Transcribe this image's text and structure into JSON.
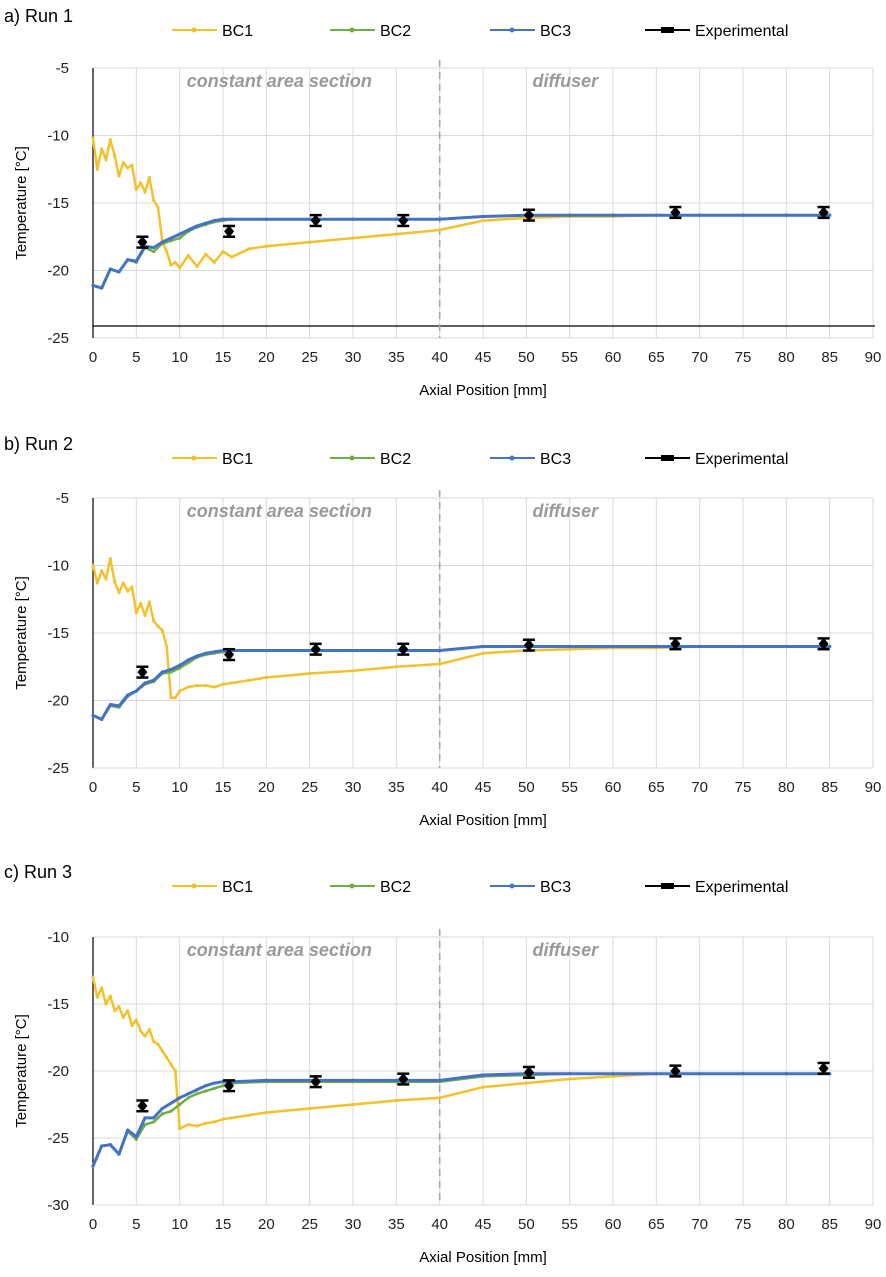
{
  "colors": {
    "bc1": "#f2c12e",
    "bc2": "#70ad47",
    "bc3": "#4472c4",
    "experimental": "#000000",
    "grid": "#d9d9d9",
    "divider": "#a6a6a6"
  },
  "legend": [
    "BC1",
    "BC2",
    "BC3",
    "Experimental"
  ],
  "chart_data": [
    {
      "type": "line",
      "panel_label": "a) Run 1",
      "xlabel": "Axial Position [mm]",
      "ylabel": "Temperature [°C]",
      "xlim": [
        0,
        90
      ],
      "ylim": [
        -25,
        -5
      ],
      "x_ticks": [
        "0",
        "5",
        "10",
        "15",
        "20",
        "25",
        "30",
        "35",
        "40",
        "45",
        "50",
        "55",
        "60",
        "65",
        "70",
        "75",
        "80",
        "85",
        "90"
      ],
      "y_ticks": [
        "-5",
        "-10",
        "-15",
        "-20",
        "-25"
      ],
      "divider_x": 40,
      "region_labels": [
        "constant area section",
        "diffuser"
      ],
      "series": [
        {
          "name": "BC1",
          "x": [
            0,
            0.5,
            1,
            1.5,
            2,
            2.5,
            3,
            3.5,
            4,
            4.5,
            5,
            5.5,
            6,
            6.5,
            7,
            7.5,
            8,
            8.5,
            9,
            9.5,
            10,
            11,
            12,
            13,
            14,
            15,
            16,
            18,
            20,
            25,
            30,
            35,
            40,
            45,
            50,
            55,
            60,
            65,
            70,
            75,
            80,
            85
          ],
          "y": [
            -10.2,
            -12.5,
            -11,
            -11.8,
            -10.3,
            -11.5,
            -13,
            -12,
            -12.4,
            -12.2,
            -14,
            -13.5,
            -14.2,
            -13.1,
            -14.8,
            -15.3,
            -17.8,
            -18.6,
            -19.6,
            -19.4,
            -19.8,
            -18.9,
            -19.7,
            -18.8,
            -19.4,
            -18.6,
            -19,
            -18.4,
            -18.2,
            -17.9,
            -17.6,
            -17.3,
            -17,
            -16.3,
            -16.1,
            -16,
            -16,
            -15.9,
            -15.9,
            -15.9,
            -15.9,
            -15.9
          ]
        },
        {
          "name": "BC2",
          "x": [
            0,
            1,
            2,
            3,
            4,
            5,
            6,
            7,
            8,
            9,
            10,
            11,
            12,
            13,
            14,
            15,
            16,
            20,
            25,
            30,
            35,
            40,
            45,
            50,
            55,
            60,
            65,
            70,
            75,
            80,
            85
          ],
          "y": [
            -21.1,
            -21.3,
            -19.9,
            -20.1,
            -19.2,
            -19.4,
            -18.3,
            -18.6,
            -18,
            -17.8,
            -17.6,
            -17.1,
            -16.8,
            -16.6,
            -16.4,
            -16.3,
            -16.2,
            -16.2,
            -16.2,
            -16.2,
            -16.2,
            -16.2,
            -16,
            -15.9,
            -15.9,
            -15.9,
            -15.9,
            -15.9,
            -15.9,
            -15.9,
            -15.9
          ]
        },
        {
          "name": "BC3",
          "x": [
            0,
            1,
            2,
            3,
            4,
            5,
            6,
            7,
            8,
            9,
            10,
            11,
            12,
            13,
            14,
            15,
            16,
            20,
            25,
            30,
            35,
            40,
            45,
            50,
            55,
            60,
            65,
            70,
            75,
            80,
            85
          ],
          "y": [
            -21.1,
            -21.3,
            -19.9,
            -20.1,
            -19.2,
            -19.3,
            -18.2,
            -18.3,
            -17.9,
            -17.6,
            -17.3,
            -17,
            -16.7,
            -16.5,
            -16.3,
            -16.2,
            -16.2,
            -16.2,
            -16.2,
            -16.2,
            -16.2,
            -16.2,
            -16,
            -15.9,
            -15.9,
            -15.9,
            -15.9,
            -15.9,
            -15.9,
            -15.9,
            -15.9
          ]
        },
        {
          "name": "Experimental",
          "x": [
            5.7,
            15.7,
            25.7,
            35.8,
            50.3,
            67.2,
            84.3
          ],
          "y": [
            -17.9,
            -17.1,
            -16.3,
            -16.3,
            -15.9,
            -15.7,
            -15.7
          ],
          "err": [
            0.4,
            0.4,
            0.4,
            0.4,
            0.4,
            0.4,
            0.4
          ]
        }
      ]
    },
    {
      "type": "line",
      "panel_label": "b) Run 2",
      "xlabel": "Axial Position [mm]",
      "ylabel": "Temperature [°C]",
      "xlim": [
        0,
        90
      ],
      "ylim": [
        -25,
        -5
      ],
      "x_ticks": [
        "0",
        "5",
        "10",
        "15",
        "20",
        "25",
        "30",
        "35",
        "40",
        "45",
        "50",
        "55",
        "60",
        "65",
        "70",
        "75",
        "80",
        "85",
        "90"
      ],
      "y_ticks": [
        "-5",
        "-10",
        "-15",
        "-20",
        "-25"
      ],
      "divider_x": 40,
      "region_labels": [
        "constant area section",
        "diffuser"
      ],
      "series": [
        {
          "name": "BC1",
          "x": [
            0,
            0.5,
            1,
            1.5,
            2,
            2.5,
            3,
            3.5,
            4,
            4.5,
            5,
            5.5,
            6,
            6.5,
            7,
            7.5,
            8,
            8.5,
            9,
            9.5,
            10,
            11,
            12,
            13,
            14,
            15,
            16,
            18,
            20,
            25,
            30,
            35,
            40,
            45,
            50,
            55,
            60,
            65,
            70,
            75,
            80,
            85
          ],
          "y": [
            -10,
            -11.3,
            -10.4,
            -11,
            -9.5,
            -11.2,
            -12,
            -11.3,
            -11.9,
            -11.6,
            -13.5,
            -12.8,
            -13.7,
            -12.7,
            -14.1,
            -14.5,
            -14.8,
            -16,
            -19.8,
            -19.8,
            -19.3,
            -19,
            -18.9,
            -18.9,
            -19,
            -18.8,
            -18.7,
            -18.5,
            -18.3,
            -18,
            -17.8,
            -17.5,
            -17.3,
            -16.5,
            -16.3,
            -16.2,
            -16.1,
            -16.1,
            -16,
            -16,
            -16,
            -16
          ]
        },
        {
          "name": "BC2",
          "x": [
            0,
            1,
            2,
            3,
            4,
            5,
            6,
            7,
            8,
            9,
            10,
            11,
            12,
            13,
            14,
            15,
            16,
            20,
            25,
            30,
            35,
            40,
            45,
            50,
            55,
            60,
            65,
            70,
            75,
            80,
            85
          ],
          "y": [
            -21.1,
            -21.4,
            -20.4,
            -20.5,
            -19.7,
            -19.3,
            -18.8,
            -18.6,
            -18,
            -17.9,
            -17.6,
            -17.2,
            -16.8,
            -16.6,
            -16.5,
            -16.4,
            -16.3,
            -16.3,
            -16.3,
            -16.3,
            -16.3,
            -16.3,
            -16,
            -16,
            -16,
            -16,
            -16,
            -16,
            -16,
            -16,
            -16
          ]
        },
        {
          "name": "BC3",
          "x": [
            0,
            1,
            2,
            3,
            4,
            5,
            6,
            7,
            8,
            9,
            10,
            11,
            12,
            13,
            14,
            15,
            16,
            20,
            25,
            30,
            35,
            40,
            45,
            50,
            55,
            60,
            65,
            70,
            75,
            80,
            85
          ],
          "y": [
            -21.1,
            -21.4,
            -20.3,
            -20.4,
            -19.6,
            -19.3,
            -18.7,
            -18.5,
            -17.9,
            -17.7,
            -17.4,
            -17,
            -16.7,
            -16.5,
            -16.4,
            -16.3,
            -16.3,
            -16.3,
            -16.3,
            -16.3,
            -16.3,
            -16.3,
            -16,
            -16,
            -16,
            -16,
            -16,
            -16,
            -16,
            -16,
            -16
          ]
        },
        {
          "name": "Experimental",
          "x": [
            5.7,
            15.7,
            25.7,
            35.8,
            50.3,
            67.2,
            84.3
          ],
          "y": [
            -17.9,
            -16.6,
            -16.2,
            -16.2,
            -15.9,
            -15.8,
            -15.8
          ],
          "err": [
            0.4,
            0.4,
            0.4,
            0.4,
            0.4,
            0.4,
            0.4
          ]
        }
      ]
    },
    {
      "type": "line",
      "panel_label": "c) Run 3",
      "xlabel": "Axial Position [mm]",
      "ylabel": "Temperature [°C]",
      "xlim": [
        0,
        90
      ],
      "ylim": [
        -30,
        -10
      ],
      "x_ticks": [
        "0",
        "5",
        "10",
        "15",
        "20",
        "25",
        "30",
        "35",
        "40",
        "45",
        "50",
        "55",
        "60",
        "65",
        "70",
        "75",
        "80",
        "85",
        "90"
      ],
      "y_ticks": [
        "-10",
        "-15",
        "-20",
        "-25",
        "-30"
      ],
      "divider_x": 40,
      "region_labels": [
        "constant area section",
        "diffuser"
      ],
      "series": [
        {
          "name": "BC1",
          "x": [
            0,
            0.5,
            1,
            1.5,
            2,
            2.5,
            3,
            3.5,
            4,
            4.5,
            5,
            5.5,
            6,
            6.5,
            7,
            7.5,
            8,
            8.5,
            9,
            9.5,
            10,
            11,
            12,
            13,
            14,
            15,
            16,
            18,
            20,
            25,
            30,
            35,
            40,
            45,
            50,
            55,
            60,
            65,
            70,
            75,
            80,
            85
          ],
          "y": [
            -13,
            -14.5,
            -13.8,
            -15,
            -14.4,
            -15.5,
            -15.2,
            -16,
            -15.5,
            -16.6,
            -16.2,
            -17,
            -17.4,
            -16.9,
            -17.8,
            -18,
            -18.5,
            -19,
            -19.5,
            -20,
            -24.3,
            -24,
            -24.1,
            -23.9,
            -23.8,
            -23.6,
            -23.5,
            -23.3,
            -23.1,
            -22.8,
            -22.5,
            -22.2,
            -22,
            -21.2,
            -20.9,
            -20.6,
            -20.4,
            -20.2,
            -20.2,
            -20.2,
            -20.2,
            -20.2
          ]
        },
        {
          "name": "BC2",
          "x": [
            0,
            1,
            2,
            3,
            4,
            5,
            6,
            7,
            8,
            9,
            10,
            11,
            12,
            13,
            14,
            15,
            16,
            20,
            25,
            30,
            35,
            40,
            45,
            50,
            55,
            60,
            65,
            70,
            75,
            80,
            85
          ],
          "y": [
            -27.1,
            -25.6,
            -25.5,
            -26.2,
            -24.5,
            -25.1,
            -24,
            -23.8,
            -23.2,
            -23,
            -22.5,
            -22,
            -21.7,
            -21.5,
            -21.3,
            -21.1,
            -20.9,
            -20.8,
            -20.8,
            -20.8,
            -20.8,
            -20.8,
            -20.4,
            -20.3,
            -20.2,
            -20.2,
            -20.2,
            -20.2,
            -20.2,
            -20.2,
            -20.2
          ]
        },
        {
          "name": "BC3",
          "x": [
            0,
            1,
            2,
            3,
            4,
            5,
            6,
            7,
            8,
            9,
            10,
            11,
            12,
            13,
            14,
            15,
            16,
            20,
            25,
            30,
            35,
            40,
            45,
            50,
            55,
            60,
            65,
            70,
            75,
            80,
            85
          ],
          "y": [
            -27.1,
            -25.6,
            -25.5,
            -26.2,
            -24.4,
            -24.9,
            -23.5,
            -23.5,
            -22.8,
            -22.4,
            -22,
            -21.7,
            -21.4,
            -21.1,
            -20.9,
            -20.8,
            -20.8,
            -20.7,
            -20.7,
            -20.7,
            -20.7,
            -20.7,
            -20.3,
            -20.2,
            -20.2,
            -20.2,
            -20.2,
            -20.2,
            -20.2,
            -20.2,
            -20.2
          ]
        },
        {
          "name": "Experimental",
          "x": [
            5.7,
            15.7,
            25.7,
            35.8,
            50.3,
            67.2,
            84.3
          ],
          "y": [
            -22.6,
            -21.1,
            -20.8,
            -20.6,
            -20.1,
            -20,
            -19.8
          ],
          "err": [
            0.4,
            0.4,
            0.4,
            0.4,
            0.4,
            0.4,
            0.4
          ]
        }
      ]
    }
  ]
}
